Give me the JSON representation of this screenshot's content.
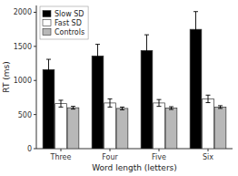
{
  "chart_data": {
    "type": "bar",
    "categories": [
      "Three",
      "Four",
      "Five",
      "Six"
    ],
    "series": [
      {
        "name": "Slow SD",
        "color": "#000000",
        "values": [
          1160,
          1360,
          1440,
          1750
        ],
        "errors": [
          150,
          170,
          230,
          260
        ]
      },
      {
        "name": "Fast SD",
        "color": "#ffffff",
        "values": [
          660,
          670,
          670,
          730
        ],
        "errors": [
          50,
          60,
          50,
          55
        ]
      },
      {
        "name": "Controls",
        "color": "#b8b8b8",
        "values": [
          600,
          590,
          595,
          610
        ],
        "errors": [
          20,
          20,
          20,
          20
        ]
      }
    ],
    "xlabel": "Word length (letters)",
    "ylabel": "RT (ms)",
    "ylim": [
      0,
      2100
    ],
    "yticks": [
      0,
      500,
      1000,
      1500,
      2000
    ],
    "grid": false,
    "legend": "upper left"
  }
}
